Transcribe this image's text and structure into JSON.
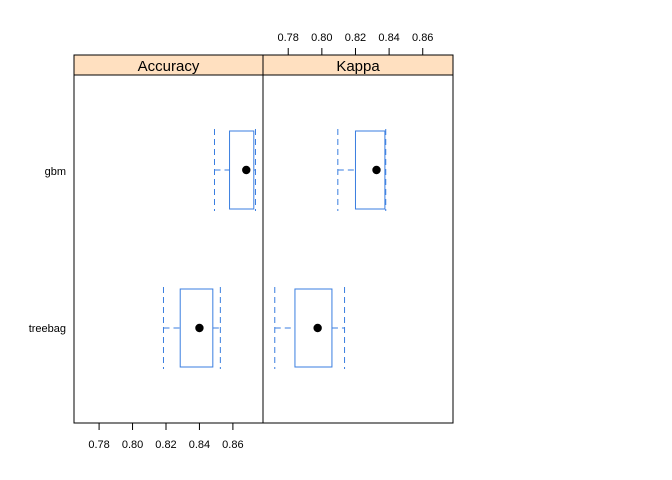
{
  "chart_data": {
    "type": "boxplot",
    "layout": "trellis-panels",
    "categories": [
      "gbm",
      "treebag"
    ],
    "x_ticks": [
      "0.78",
      "0.80",
      "0.82",
      "0.84",
      "0.86"
    ],
    "xlim": [
      0.765,
      0.878
    ],
    "colors": {
      "box": "#3a7ee0",
      "strip": "#ffe0c0",
      "point": "#000000",
      "frame": "#000000"
    },
    "panels": [
      {
        "title": "Accuracy",
        "tick_axis": "bottom",
        "boxes": [
          {
            "category": "gbm",
            "min": 0.849,
            "q1": 0.858,
            "median": 0.868,
            "q3": 0.8725,
            "max": 0.8735
          },
          {
            "category": "treebag",
            "min": 0.8185,
            "q1": 0.8285,
            "median": 0.84,
            "q3": 0.848,
            "max": 0.8525
          }
        ]
      },
      {
        "title": "Kappa",
        "tick_axis": "top",
        "boxes": [
          {
            "category": "gbm",
            "min": 0.8095,
            "q1": 0.82,
            "median": 0.8325,
            "q3": 0.8375,
            "max": 0.838
          },
          {
            "category": "treebag",
            "min": 0.772,
            "q1": 0.784,
            "median": 0.7975,
            "q3": 0.806,
            "max": 0.8135
          }
        ]
      }
    ]
  }
}
